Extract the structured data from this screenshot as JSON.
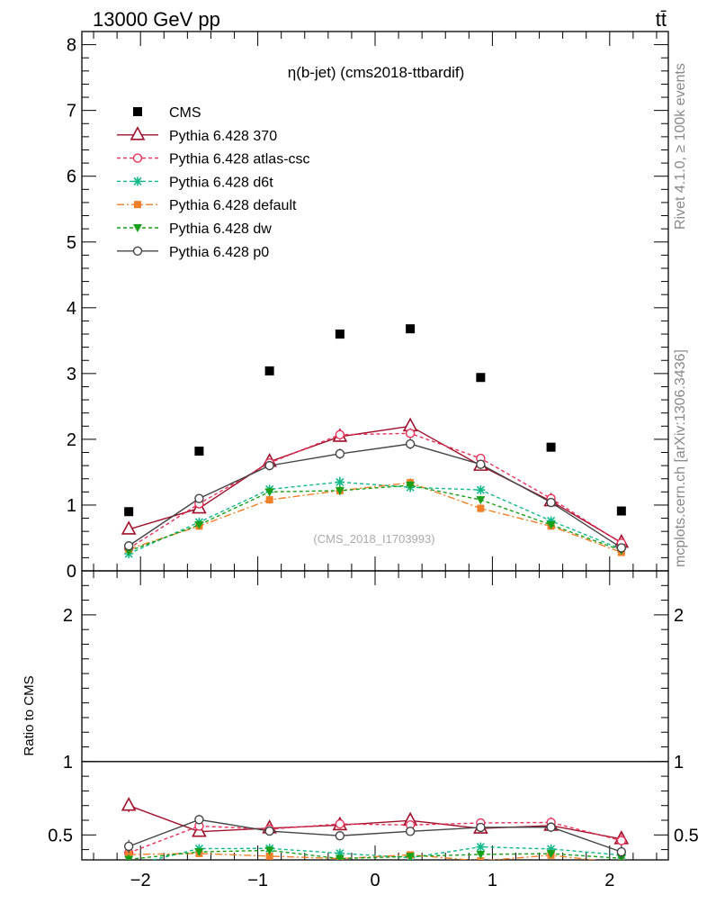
{
  "header": {
    "energy_label": "13000 GeV pp",
    "process_label": "tt̄"
  },
  "side_labels": {
    "rivet": "Rivet 4.1.0, ≥ 100k events",
    "mcplots": "mcplots.cern.ch [arXiv:1306.3436]"
  },
  "chart_data": {
    "type": "scatter",
    "title": "η(b-jet) (cms2018-ttbardif)",
    "watermark": "(CMS_2018_I1703993)",
    "x": [
      -2.1,
      -1.5,
      -0.9,
      -0.3,
      0.3,
      0.9,
      1.5,
      2.1
    ],
    "xlim": [
      -2.5,
      2.5
    ],
    "xticks": [
      -2,
      -1,
      0,
      1,
      2
    ],
    "xtick_labels": [
      "−2",
      "−1",
      "0",
      "1",
      "2"
    ],
    "main": {
      "ylim": [
        0,
        8.2
      ],
      "yticks": [
        0,
        1,
        2,
        3,
        4,
        5,
        6,
        7,
        8
      ],
      "ytick_labels": [
        "0",
        "1",
        "2",
        "3",
        "4",
        "5",
        "6",
        "7",
        "8"
      ]
    },
    "ratio": {
      "ylabel": "Ratio to CMS",
      "ylim": [
        0.33,
        2.3
      ],
      "yticks": [
        0.5,
        1,
        2
      ],
      "ytick_labels": [
        "0.5",
        "1",
        "2"
      ]
    },
    "data": {
      "name": "CMS",
      "color": "#000000",
      "values": [
        0.9,
        1.82,
        3.04,
        3.6,
        3.68,
        2.94,
        1.88,
        0.91
      ]
    },
    "series": [
      {
        "name": "Pythia 6.428 370",
        "color": "#a0102a",
        "dash": "",
        "marker": "triangle-open",
        "values": [
          0.63,
          0.95,
          1.66,
          2.04,
          2.2,
          1.6,
          1.06,
          0.43
        ],
        "errors": [
          0.04,
          0.05,
          0.07,
          0.08,
          0.1,
          0.07,
          0.06,
          0.04
        ]
      },
      {
        "name": "Pythia 6.428 atlas-csc",
        "color": "#e8305a",
        "dash": "4,3",
        "marker": "circle-open",
        "values": [
          0.34,
          1.02,
          1.64,
          2.07,
          2.09,
          1.71,
          1.1,
          0.42
        ],
        "errors": [
          0.04,
          0.05,
          0.07,
          0.08,
          0.08,
          0.07,
          0.06,
          0.04
        ]
      },
      {
        "name": "Pythia 6.428 d6t",
        "color": "#10b88a",
        "dash": "4,3",
        "marker": "star",
        "values": [
          0.26,
          0.74,
          1.24,
          1.35,
          1.27,
          1.23,
          0.76,
          0.33
        ],
        "errors": [
          0.03,
          0.04,
          0.06,
          0.08,
          0.07,
          0.06,
          0.04,
          0.03
        ]
      },
      {
        "name": "Pythia 6.428 default",
        "color": "#f07f2a",
        "dash": "8,3,2,3",
        "marker": "square",
        "values": [
          0.33,
          0.68,
          1.08,
          1.22,
          1.34,
          0.95,
          0.68,
          0.28
        ],
        "errors": [
          0.03,
          0.04,
          0.06,
          0.07,
          0.07,
          0.06,
          0.04,
          0.03
        ]
      },
      {
        "name": "Pythia 6.428 dw",
        "color": "#18a018",
        "dash": "4,3",
        "marker": "triangle-down",
        "values": [
          0.3,
          0.7,
          1.2,
          1.22,
          1.3,
          1.08,
          0.7,
          0.31
        ],
        "errors": [
          0.03,
          0.04,
          0.06,
          0.07,
          0.07,
          0.06,
          0.04,
          0.03
        ]
      },
      {
        "name": "Pythia 6.428 p0",
        "color": "#444444",
        "dash": "",
        "marker": "circle-open",
        "values": [
          0.38,
          1.1,
          1.6,
          1.78,
          1.93,
          1.62,
          1.04,
          0.35
        ],
        "errors": [
          0.04,
          0.06,
          0.07,
          0.08,
          0.08,
          0.07,
          0.06,
          0.04
        ]
      }
    ]
  }
}
